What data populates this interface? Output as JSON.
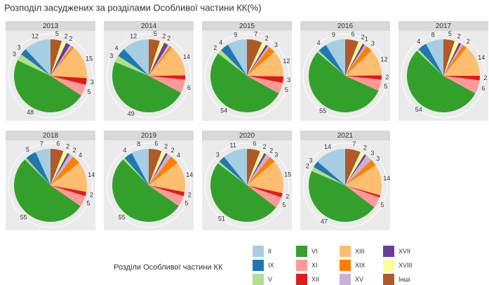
{
  "chart_data": {
    "type": "pie",
    "title": "Розподіл засуджених за розділами Особливої частини КК(%)",
    "legend_title": "Розділи Особливої частини КК",
    "categories": [
      "II",
      "IX",
      "V",
      "VI",
      "XI",
      "XII",
      "XIII",
      "XIX",
      "XV",
      "XVII",
      "XVIII",
      "Інші"
    ],
    "colors": [
      "#a6cee3",
      "#1f78b4",
      "#b2df8a",
      "#33a02c",
      "#fb9a99",
      "#e31a1c",
      "#fdbf6f",
      "#ff7f00",
      "#cab2d6",
      "#6a3d9a",
      "#ffff99",
      "#b15928"
    ],
    "facets": [
      {
        "title": "2013",
        "values": [
          12,
          3,
          3,
          48,
          5,
          3,
          15,
          1,
          1,
          2,
          2,
          5
        ],
        "value_labels": [
          "12",
          "3",
          "3",
          "48",
          "5",
          "3",
          "15",
          null,
          null,
          "2",
          "2",
          "5"
        ]
      },
      {
        "title": "2014",
        "values": [
          12,
          4,
          3,
          49,
          6,
          2,
          14,
          1,
          1,
          2,
          2,
          5
        ],
        "value_labels": [
          "12",
          "4",
          "3",
          "49",
          "6",
          null,
          "14",
          null,
          null,
          "2",
          "2",
          "5"
        ]
      },
      {
        "title": "2015",
        "values": [
          9,
          4,
          2,
          54,
          5,
          3,
          12,
          3,
          1,
          1,
          2,
          7
        ],
        "value_labels": [
          "9",
          "4",
          "2",
          "54",
          "5",
          "3",
          "12",
          "3",
          null,
          null,
          "2",
          "7"
        ]
      },
      {
        "title": "2016",
        "values": [
          9,
          4,
          1,
          55,
          5,
          2,
          12,
          3,
          1,
          1,
          2,
          6
        ],
        "value_labels": [
          "9",
          "4",
          null,
          "55",
          "5",
          "2",
          "12",
          "3",
          null,
          "1",
          "2",
          "6"
        ]
      },
      {
        "title": "2017",
        "values": [
          8,
          4,
          1,
          54,
          6,
          2,
          14,
          2,
          1,
          1,
          2,
          5
        ],
        "value_labels": [
          "8",
          "4",
          null,
          "54",
          "6",
          "2",
          "14",
          "2",
          null,
          null,
          "2",
          "5"
        ]
      },
      {
        "title": "2018",
        "values": [
          7,
          5,
          1,
          55,
          5,
          2,
          14,
          4,
          2,
          1,
          2,
          6
        ],
        "value_labels": [
          "7",
          "5",
          null,
          "55",
          "5",
          "2",
          "14",
          "4",
          "2",
          null,
          "2",
          "6"
        ]
      },
      {
        "title": "2019",
        "values": [
          8,
          4,
          1,
          55,
          5,
          2,
          14,
          4,
          2,
          1,
          2,
          6
        ],
        "value_labels": [
          "8",
          "4",
          null,
          "55",
          "5",
          "2",
          "14",
          "4",
          "2",
          null,
          "2",
          "6"
        ]
      },
      {
        "title": "2020",
        "values": [
          11,
          3,
          1,
          51,
          5,
          2,
          15,
          3,
          2,
          1,
          2,
          6
        ],
        "value_labels": [
          "11",
          "3",
          null,
          "51",
          "5",
          "2",
          "15",
          "3",
          "2",
          null,
          "2",
          "6"
        ]
      },
      {
        "title": "2021",
        "values": [
          14,
          3,
          2,
          47,
          5,
          1,
          14,
          3,
          3,
          1,
          2,
          7
        ],
        "value_labels": [
          "14",
          "3",
          "2",
          "47",
          "5",
          null,
          "14",
          "3",
          "3",
          null,
          "2",
          "7"
        ]
      }
    ]
  }
}
